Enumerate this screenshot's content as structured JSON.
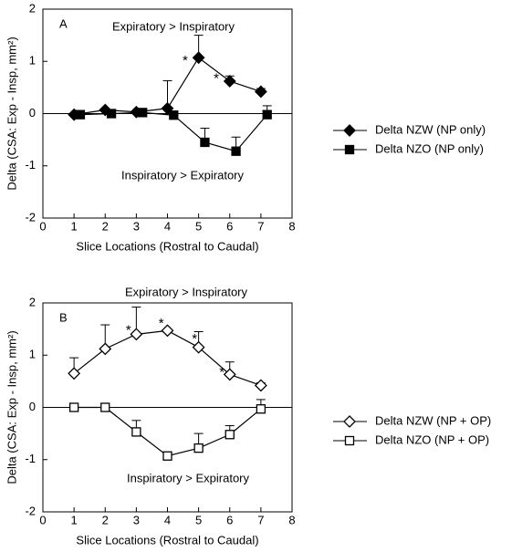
{
  "chart_data": [
    {
      "type": "line",
      "panel_label": "A",
      "annotations": [
        "Expiratory > Inspiratory",
        "Inspiratory > Expiratory"
      ],
      "significance_marks": [
        "*",
        "*"
      ],
      "xlabel": "Slice Locations (Rostral to Caudal)",
      "ylabel": "Delta (CSA: Exp - Insp, mm²)",
      "xlim": [
        0,
        8
      ],
      "xticks": [
        0,
        1,
        2,
        3,
        4,
        5,
        6,
        7,
        8
      ],
      "ylim": [
        -2,
        2
      ],
      "yticks": [
        -2,
        -1,
        0,
        1,
        2
      ],
      "series": [
        {
          "name": "Delta NZW (NP only)",
          "color": "#000000",
          "marker": "diamond",
          "filled": true,
          "x": [
            1,
            2,
            3,
            4,
            5,
            6,
            7
          ],
          "values": [
            -0.02,
            0.07,
            0.03,
            0.1,
            1.07,
            0.62,
            0.42
          ],
          "errors": [
            0,
            0,
            0,
            0.53,
            0.43,
            0.1,
            0.06
          ]
        },
        {
          "name": "Delta NZO (NP only)",
          "color": "#000000",
          "marker": "square",
          "filled": true,
          "x": [
            1.2,
            2.2,
            3.2,
            4.2,
            5.2,
            6.2,
            7.2
          ],
          "values": [
            -0.02,
            0,
            0.02,
            -0.03,
            -0.55,
            -0.72,
            -0.02
          ],
          "errors": [
            0,
            0,
            0,
            0,
            0.27,
            0.27,
            0.17
          ]
        }
      ]
    },
    {
      "type": "line",
      "panel_label": "B",
      "annotations": [
        "Expiratory > Inspiratory",
        "Inspiratory > Expiratory"
      ],
      "significance_marks": [
        "*",
        "*",
        "*",
        "*"
      ],
      "xlabel": "Slice Locations (Rostral to Caudal)",
      "ylabel": "Delta (CSA: Exp - Insp, mm²)",
      "xlim": [
        0,
        8
      ],
      "xticks": [
        0,
        1,
        2,
        3,
        4,
        5,
        6,
        7,
        8
      ],
      "ylim": [
        -2,
        2
      ],
      "yticks": [
        -2,
        -1,
        0,
        1,
        2
      ],
      "series": [
        {
          "name": "Delta NZW (NP + OP)",
          "color": "#000000",
          "marker": "diamond",
          "filled": false,
          "x": [
            1,
            2,
            3,
            4,
            5,
            6,
            7
          ],
          "values": [
            0.65,
            1.12,
            1.4,
            1.47,
            1.15,
            0.63,
            0.42
          ],
          "errors": [
            0.3,
            0.46,
            0.52,
            0,
            0.3,
            0.24,
            0.05
          ]
        },
        {
          "name": "Delta NZO (NP + OP)",
          "color": "#000000",
          "marker": "square",
          "filled": false,
          "x": [
            1,
            2,
            3,
            4,
            5,
            6,
            7
          ],
          "values": [
            0,
            0,
            -0.47,
            -0.93,
            -0.78,
            -0.52,
            -0.03
          ],
          "errors": [
            0,
            0,
            0.22,
            0,
            0.28,
            0.17,
            0.18
          ]
        }
      ]
    }
  ]
}
